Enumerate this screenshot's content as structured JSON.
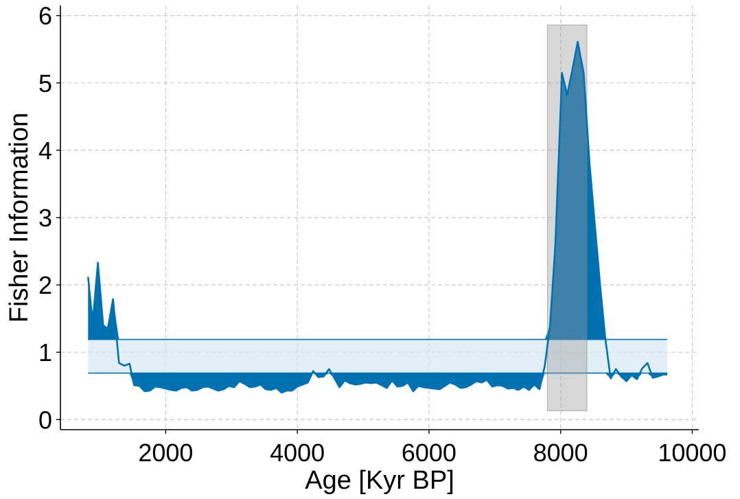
{
  "chart_data": {
    "type": "area",
    "title": "",
    "xlabel": "Age [Kyr BP]",
    "ylabel": "Fisher Information",
    "xlim": [
      400,
      10100
    ],
    "ylim": [
      -0.15,
      6.15
    ],
    "x_ticks": [
      2000,
      4000,
      6000,
      8000,
      10000
    ],
    "y_ticks": [
      0,
      1,
      2,
      3,
      4,
      5,
      6
    ],
    "grid": true,
    "band": {
      "lower": 0.69,
      "upper": 1.19,
      "x_start": 820,
      "x_end": 9620
    },
    "highlight_region": {
      "x_start": 7800,
      "x_end": 8400,
      "y_start": 0.13,
      "y_end": 5.86
    },
    "series": [
      {
        "color": "#0072B2",
        "points": [
          [
            820,
            2.12
          ],
          [
            890,
            1.45
          ],
          [
            970,
            2.33
          ],
          [
            1050,
            1.4
          ],
          [
            1120,
            1.35
          ],
          [
            1200,
            1.79
          ],
          [
            1290,
            0.84
          ],
          [
            1370,
            0.8
          ],
          [
            1450,
            0.83
          ],
          [
            1520,
            0.51
          ],
          [
            1600,
            0.5
          ],
          [
            1680,
            0.42
          ],
          [
            1760,
            0.43
          ],
          [
            1840,
            0.49
          ],
          [
            1920,
            0.48
          ],
          [
            2000,
            0.46
          ],
          [
            2080,
            0.44
          ],
          [
            2160,
            0.43
          ],
          [
            2240,
            0.47
          ],
          [
            2320,
            0.48
          ],
          [
            2400,
            0.43
          ],
          [
            2480,
            0.44
          ],
          [
            2560,
            0.48
          ],
          [
            2640,
            0.49
          ],
          [
            2720,
            0.46
          ],
          [
            2800,
            0.43
          ],
          [
            2880,
            0.45
          ],
          [
            2960,
            0.5
          ],
          [
            3040,
            0.48
          ],
          [
            3120,
            0.57
          ],
          [
            3200,
            0.53
          ],
          [
            3280,
            0.48
          ],
          [
            3360,
            0.49
          ],
          [
            3440,
            0.52
          ],
          [
            3520,
            0.45
          ],
          [
            3600,
            0.44
          ],
          [
            3680,
            0.47
          ],
          [
            3760,
            0.4
          ],
          [
            3840,
            0.43
          ],
          [
            3920,
            0.43
          ],
          [
            4000,
            0.49
          ],
          [
            4080,
            0.52
          ],
          [
            4160,
            0.55
          ],
          [
            4240,
            0.72
          ],
          [
            4320,
            0.63
          ],
          [
            4400,
            0.64
          ],
          [
            4480,
            0.75
          ],
          [
            4560,
            0.62
          ],
          [
            4640,
            0.48
          ],
          [
            4720,
            0.58
          ],
          [
            4800,
            0.54
          ],
          [
            4880,
            0.52
          ],
          [
            4960,
            0.53
          ],
          [
            5040,
            0.55
          ],
          [
            5120,
            0.54
          ],
          [
            5200,
            0.55
          ],
          [
            5280,
            0.51
          ],
          [
            5360,
            0.47
          ],
          [
            5440,
            0.58
          ],
          [
            5520,
            0.49
          ],
          [
            5600,
            0.5
          ],
          [
            5680,
            0.55
          ],
          [
            5760,
            0.42
          ],
          [
            5840,
            0.5
          ],
          [
            5920,
            0.48
          ],
          [
            6000,
            0.47
          ],
          [
            6080,
            0.46
          ],
          [
            6160,
            0.45
          ],
          [
            6240,
            0.5
          ],
          [
            6320,
            0.55
          ],
          [
            6400,
            0.52
          ],
          [
            6480,
            0.47
          ],
          [
            6560,
            0.48
          ],
          [
            6640,
            0.52
          ],
          [
            6720,
            0.57
          ],
          [
            6800,
            0.55
          ],
          [
            6880,
            0.59
          ],
          [
            6960,
            0.49
          ],
          [
            7040,
            0.51
          ],
          [
            7120,
            0.5
          ],
          [
            7200,
            0.46
          ],
          [
            7280,
            0.47
          ],
          [
            7360,
            0.44
          ],
          [
            7440,
            0.49
          ],
          [
            7520,
            0.44
          ],
          [
            7600,
            0.52
          ],
          [
            7680,
            0.45
          ],
          [
            7760,
            0.8
          ],
          [
            7840,
            1.4
          ],
          [
            7920,
            2.6
          ],
          [
            8000,
            4.6
          ],
          [
            8020,
            5.15
          ],
          [
            8100,
            4.82
          ],
          [
            8180,
            5.2
          ],
          [
            8260,
            5.61
          ],
          [
            8350,
            5.15
          ],
          [
            8440,
            3.8
          ],
          [
            8520,
            2.9
          ],
          [
            8600,
            2.0
          ],
          [
            8680,
            1.2
          ],
          [
            8760,
            0.61
          ],
          [
            8840,
            0.75
          ],
          [
            8920,
            0.64
          ],
          [
            9000,
            0.57
          ],
          [
            9080,
            0.66
          ],
          [
            9160,
            0.6
          ],
          [
            9240,
            0.76
          ],
          [
            9320,
            0.84
          ],
          [
            9400,
            0.62
          ],
          [
            9480,
            0.64
          ],
          [
            9560,
            0.67
          ],
          [
            9620,
            0.67
          ]
        ]
      }
    ]
  }
}
